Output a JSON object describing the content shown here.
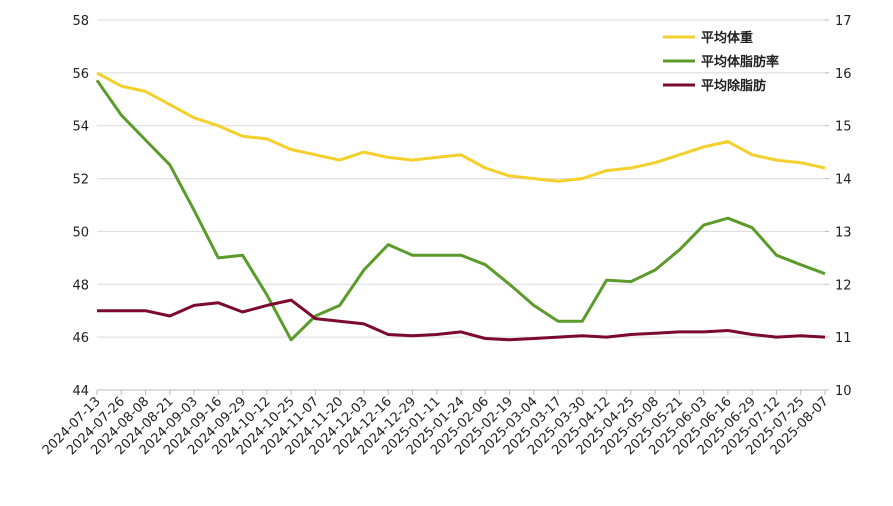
{
  "chart_data": {
    "type": "line",
    "categories": [
      "2024-07-13",
      "2024-07-26",
      "2024-08-08",
      "2024-08-21",
      "2024-09-03",
      "2024-09-16",
      "2024-09-29",
      "2024-10-12",
      "2024-10-25",
      "2024-11-07",
      "2024-11-20",
      "2024-12-03",
      "2024-12-16",
      "2024-12-29",
      "2025-01-11",
      "2025-01-24",
      "2025-02-06",
      "2025-02-19",
      "2025-03-04",
      "2025-03-17",
      "2025-03-30",
      "2025-04-12",
      "2025-04-25",
      "2025-05-08",
      "2025-05-21",
      "2025-06-03",
      "2025-06-16",
      "2025-06-29",
      "2025-07-12",
      "2025-07-25",
      "2025-08-07"
    ],
    "series": [
      {
        "name": "平均体重",
        "color": "#f5cf2b",
        "values": [
          56.0,
          55.5,
          55.3,
          54.8,
          54.3,
          54.0,
          53.6,
          53.5,
          53.1,
          52.9,
          52.7,
          53.0,
          52.8,
          52.7,
          52.8,
          52.9,
          52.4,
          52.1,
          52.0,
          51.9,
          52.0,
          52.3,
          52.4,
          52.6,
          52.9,
          53.2,
          53.4,
          52.9,
          52.7,
          52.6,
          52.4
        ]
      },
      {
        "name": "平均体脂肪率",
        "color": "#5b9b2b",
        "axis": "y2",
        "values": [
          15.86,
          15.2,
          14.73,
          14.26,
          13.4,
          12.5,
          12.55,
          11.8,
          10.95,
          11.4,
          11.6,
          12.27,
          12.75,
          12.55,
          12.55,
          12.55,
          12.37,
          12.0,
          11.6,
          11.3,
          11.3,
          12.08,
          12.05,
          12.27,
          12.65,
          13.12,
          13.25,
          13.07,
          12.55,
          12.37,
          12.2
        ]
      },
      {
        "name": "平均除脂肪",
        "color": "#7b0a2e",
        "values": [
          47.0,
          47.0,
          47.0,
          46.8,
          47.2,
          47.3,
          46.95,
          47.2,
          47.4,
          46.7,
          46.6,
          46.5,
          46.1,
          46.05,
          46.1,
          46.2,
          45.95,
          45.9,
          45.95,
          46.0,
          46.05,
          46.0,
          46.1,
          46.15,
          46.2,
          46.2,
          46.25,
          46.1,
          46.0,
          46.05,
          46.0
        ]
      }
    ],
    "ylim": [
      44,
      58
    ],
    "yticks": [
      44,
      46,
      48,
      50,
      52,
      54,
      56,
      58
    ],
    "y2lim": [
      10,
      17
    ],
    "y2ticks": [
      10,
      11,
      12,
      13,
      14,
      15,
      16,
      17
    ],
    "grid": true,
    "legend": "top-right"
  }
}
